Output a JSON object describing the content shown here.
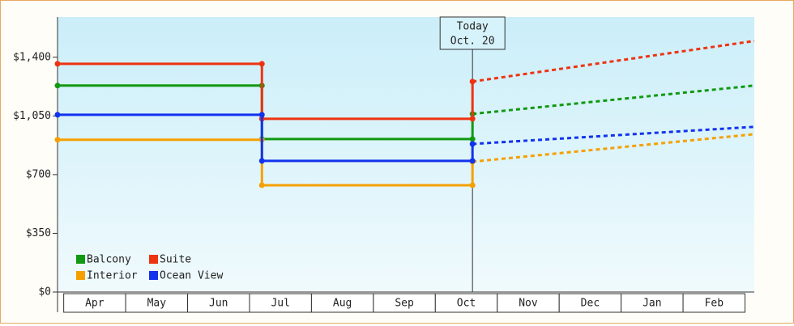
{
  "chart_data": {
    "type": "step-line",
    "x": [
      -0.1,
      3.2,
      3.2,
      6.6,
      6.6,
      11.15
    ],
    "xlim": [
      -0.1,
      11.15
    ],
    "xticks": [
      {
        "value": 0.5,
        "label": "Apr"
      },
      {
        "value": 1.5,
        "label": "May"
      },
      {
        "value": 2.5,
        "label": "Jun"
      },
      {
        "value": 3.5,
        "label": "Jul"
      },
      {
        "value": 4.5,
        "label": "Aug"
      },
      {
        "value": 5.5,
        "label": "Sep"
      },
      {
        "value": 6.5,
        "label": "Oct"
      },
      {
        "value": 7.5,
        "label": "Nov"
      },
      {
        "value": 8.5,
        "label": "Dec"
      },
      {
        "value": 9.5,
        "label": "Jan"
      },
      {
        "value": 10.5,
        "label": "Feb"
      }
    ],
    "ylim": [
      0,
      1640
    ],
    "yticks": [
      {
        "value": 0,
        "label": "$0"
      },
      {
        "value": 350,
        "label": "$350"
      },
      {
        "value": 700,
        "label": "$700"
      },
      {
        "value": 1050,
        "label": "$1,050"
      },
      {
        "value": 1400,
        "label": "$1,400"
      }
    ],
    "series": [
      {
        "name": "Balcony",
        "color": "#119911",
        "values": [
          1231,
          1231,
          912,
          912,
          1062,
          null
        ],
        "projected": [
          null,
          null,
          null,
          null,
          null,
          1231
        ]
      },
      {
        "name": "Suite",
        "color": "#ee3311",
        "values": [
          1361,
          1361,
          1033,
          1033,
          1255,
          null
        ],
        "projected": [
          null,
          null,
          null,
          null,
          null,
          1497
        ]
      },
      {
        "name": "Interior",
        "color": "#f5a000",
        "values": [
          908,
          908,
          637,
          637,
          777,
          null
        ],
        "projected": [
          null,
          null,
          null,
          null,
          null,
          941
        ]
      },
      {
        "name": "Ocean View",
        "color": "#1133ee",
        "values": [
          1057,
          1057,
          782,
          782,
          883,
          null
        ],
        "projected": [
          null,
          null,
          null,
          null,
          null,
          985
        ]
      }
    ],
    "annotation": {
      "lines": [
        "Today",
        "Oct. 20"
      ],
      "x": 6.6
    },
    "legend": "bottom-left"
  }
}
